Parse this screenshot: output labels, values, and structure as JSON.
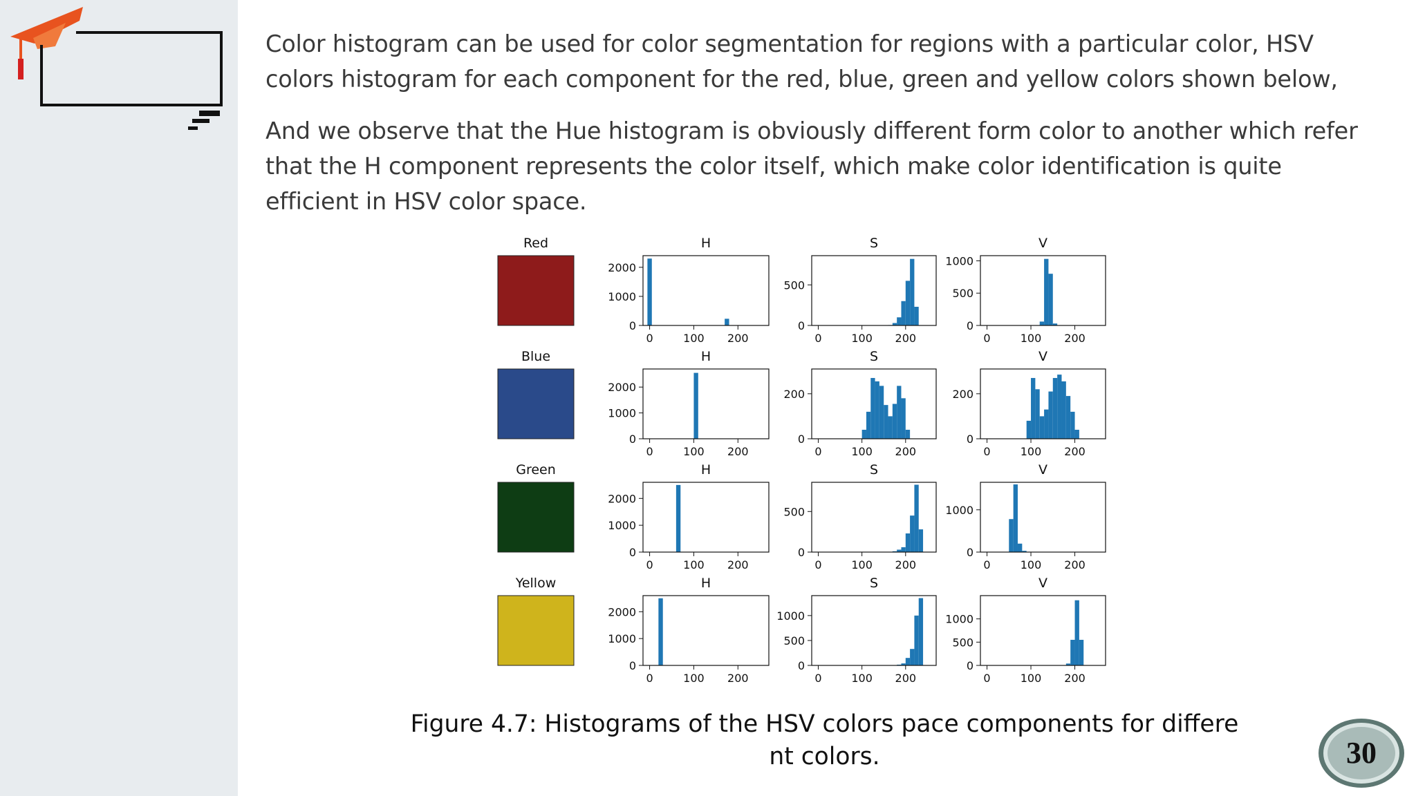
{
  "slide": {
    "paragraph_1": "Color histogram can be used for color segmentation for regions with a particular color, HSV colors histogram for each component for the red, blue, green and yellow colors shown below,",
    "paragraph_2": "And we observe that the Hue histogram is obviously different form color to another which refer that the H component represents the color itself, which make color identification is quite efficient in HSV color space.",
    "caption_line_1": "Figure 4.7: Histograms of the HSV colors pace components for differe",
    "caption_line_2": "nt colors.",
    "page_number": "30"
  },
  "colors": {
    "sidebar": "#e8ecef",
    "bar": "#1f77b4",
    "cap": "#e8531f",
    "badge": "#6f8b86"
  },
  "chart_data": {
    "type": "bar",
    "x_ticks": [
      "0",
      "100",
      "200"
    ],
    "xlim": [
      -15,
      270
    ],
    "rows": [
      {
        "label": "Red",
        "swatch": "#8e1b1b",
        "H": {
          "title": "H",
          "ylim": [
            0,
            2400
          ],
          "yticks": [
            0,
            1000,
            2000
          ],
          "bars": [
            {
              "x": 0,
              "y": 2300
            },
            {
              "x": 175,
              "y": 230
            }
          ]
        },
        "S": {
          "title": "S",
          "ylim": [
            0,
            860
          ],
          "yticks": [
            0,
            500
          ],
          "bars": [
            {
              "x": 165,
              "y": 5
            },
            {
              "x": 175,
              "y": 30
            },
            {
              "x": 185,
              "y": 100
            },
            {
              "x": 195,
              "y": 300
            },
            {
              "x": 205,
              "y": 550
            },
            {
              "x": 215,
              "y": 820
            },
            {
              "x": 225,
              "y": 230
            }
          ]
        },
        "V": {
          "title": "V",
          "ylim": [
            0,
            1080
          ],
          "yticks": [
            0,
            500,
            1000
          ],
          "bars": [
            {
              "x": 125,
              "y": 60
            },
            {
              "x": 135,
              "y": 1030
            },
            {
              "x": 145,
              "y": 800
            },
            {
              "x": 155,
              "y": 30
            }
          ]
        }
      },
      {
        "label": "Blue",
        "swatch": "#2a4a8a",
        "H": {
          "title": "H",
          "ylim": [
            0,
            2700
          ],
          "yticks": [
            0,
            1000,
            2000
          ],
          "bars": [
            {
              "x": 105,
              "y": 2550
            }
          ]
        },
        "S": {
          "title": "S",
          "ylim": [
            0,
            310
          ],
          "yticks": [
            0,
            200
          ],
          "bars": [
            {
              "x": 105,
              "y": 40
            },
            {
              "x": 115,
              "y": 120
            },
            {
              "x": 125,
              "y": 270
            },
            {
              "x": 135,
              "y": 255
            },
            {
              "x": 145,
              "y": 235
            },
            {
              "x": 155,
              "y": 150
            },
            {
              "x": 165,
              "y": 100
            },
            {
              "x": 175,
              "y": 155
            },
            {
              "x": 185,
              "y": 235
            },
            {
              "x": 195,
              "y": 180
            },
            {
              "x": 205,
              "y": 40
            }
          ]
        },
        "V": {
          "title": "V",
          "ylim": [
            0,
            310
          ],
          "yticks": [
            0,
            200
          ],
          "bars": [
            {
              "x": 95,
              "y": 80
            },
            {
              "x": 105,
              "y": 270
            },
            {
              "x": 115,
              "y": 220
            },
            {
              "x": 125,
              "y": 100
            },
            {
              "x": 135,
              "y": 130
            },
            {
              "x": 145,
              "y": 210
            },
            {
              "x": 155,
              "y": 270
            },
            {
              "x": 165,
              "y": 285
            },
            {
              "x": 175,
              "y": 255
            },
            {
              "x": 185,
              "y": 190
            },
            {
              "x": 195,
              "y": 120
            },
            {
              "x": 205,
              "y": 40
            }
          ]
        }
      },
      {
        "label": "Green",
        "swatch": "#0e3d14",
        "H": {
          "title": "H",
          "ylim": [
            0,
            2600
          ],
          "yticks": [
            0,
            1000,
            2000
          ],
          "bars": [
            {
              "x": 65,
              "y": 2500
            }
          ]
        },
        "S": {
          "title": "S",
          "ylim": [
            0,
            860
          ],
          "yticks": [
            0,
            500
          ],
          "bars": [
            {
              "x": 175,
              "y": 10
            },
            {
              "x": 185,
              "y": 30
            },
            {
              "x": 195,
              "y": 60
            },
            {
              "x": 205,
              "y": 230
            },
            {
              "x": 215,
              "y": 450
            },
            {
              "x": 225,
              "y": 830
            },
            {
              "x": 235,
              "y": 280
            }
          ]
        },
        "V": {
          "title": "V",
          "ylim": [
            0,
            1650
          ],
          "yticks": [
            0,
            1000
          ],
          "bars": [
            {
              "x": 55,
              "y": 780
            },
            {
              "x": 65,
              "y": 1600
            },
            {
              "x": 75,
              "y": 200
            },
            {
              "x": 85,
              "y": 30
            }
          ]
        }
      },
      {
        "label": "Yellow",
        "swatch": "#cfb41c",
        "H": {
          "title": "H",
          "ylim": [
            0,
            2600
          ],
          "yticks": [
            0,
            1000,
            2000
          ],
          "bars": [
            {
              "x": 25,
              "y": 2500
            }
          ]
        },
        "S": {
          "title": "S",
          "ylim": [
            0,
            1400
          ],
          "yticks": [
            0,
            500,
            1000
          ],
          "bars": [
            {
              "x": 155,
              "y": 3
            },
            {
              "x": 175,
              "y": 5
            },
            {
              "x": 185,
              "y": 15
            },
            {
              "x": 195,
              "y": 40
            },
            {
              "x": 205,
              "y": 150
            },
            {
              "x": 215,
              "y": 330
            },
            {
              "x": 225,
              "y": 1000
            },
            {
              "x": 235,
              "y": 1350
            }
          ]
        },
        "V": {
          "title": "V",
          "ylim": [
            0,
            1500
          ],
          "yticks": [
            0,
            500,
            1000
          ],
          "bars": [
            {
              "x": 175,
              "y": 5
            },
            {
              "x": 185,
              "y": 40
            },
            {
              "x": 195,
              "y": 550
            },
            {
              "x": 205,
              "y": 1400
            },
            {
              "x": 215,
              "y": 550
            }
          ]
        }
      }
    ]
  }
}
